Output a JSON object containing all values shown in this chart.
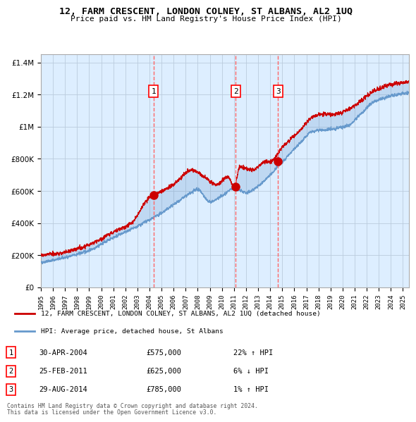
{
  "title": "12, FARM CRESCENT, LONDON COLNEY, ST ALBANS, AL2 1UQ",
  "subtitle": "Price paid vs. HM Land Registry's House Price Index (HPI)",
  "background_color": "#ffffff",
  "plot_bg_color": "#ddeeff",
  "grid_color": "#bbccdd",
  "sale_line_color": "#cc0000",
  "hpi_line_color": "#6699cc",
  "sale_marker_color": "#cc0000",
  "vline_color": "#ff6666",
  "sales": [
    {
      "date_num": 2004.33,
      "price": 575000,
      "label": "1",
      "date_str": "30-APR-2004",
      "pct": "22%",
      "dir": "↑"
    },
    {
      "date_num": 2011.15,
      "price": 625000,
      "label": "2",
      "date_str": "25-FEB-2011",
      "pct": "6%",
      "dir": "↓"
    },
    {
      "date_num": 2014.66,
      "price": 785000,
      "label": "3",
      "date_str": "29-AUG-2014",
      "pct": "1%",
      "dir": "↑"
    }
  ],
  "legend_line1": "12, FARM CRESCENT, LONDON COLNEY, ST ALBANS, AL2 1UQ (detached house)",
  "legend_line2": "HPI: Average price, detached house, St Albans",
  "footer1": "Contains HM Land Registry data © Crown copyright and database right 2024.",
  "footer2": "This data is licensed under the Open Government Licence v3.0.",
  "xmin": 1995,
  "xmax": 2025.5,
  "ymin": 0,
  "ymax": 1450000,
  "yticks": [
    0,
    200000,
    400000,
    600000,
    800000,
    1000000,
    1200000,
    1400000
  ]
}
